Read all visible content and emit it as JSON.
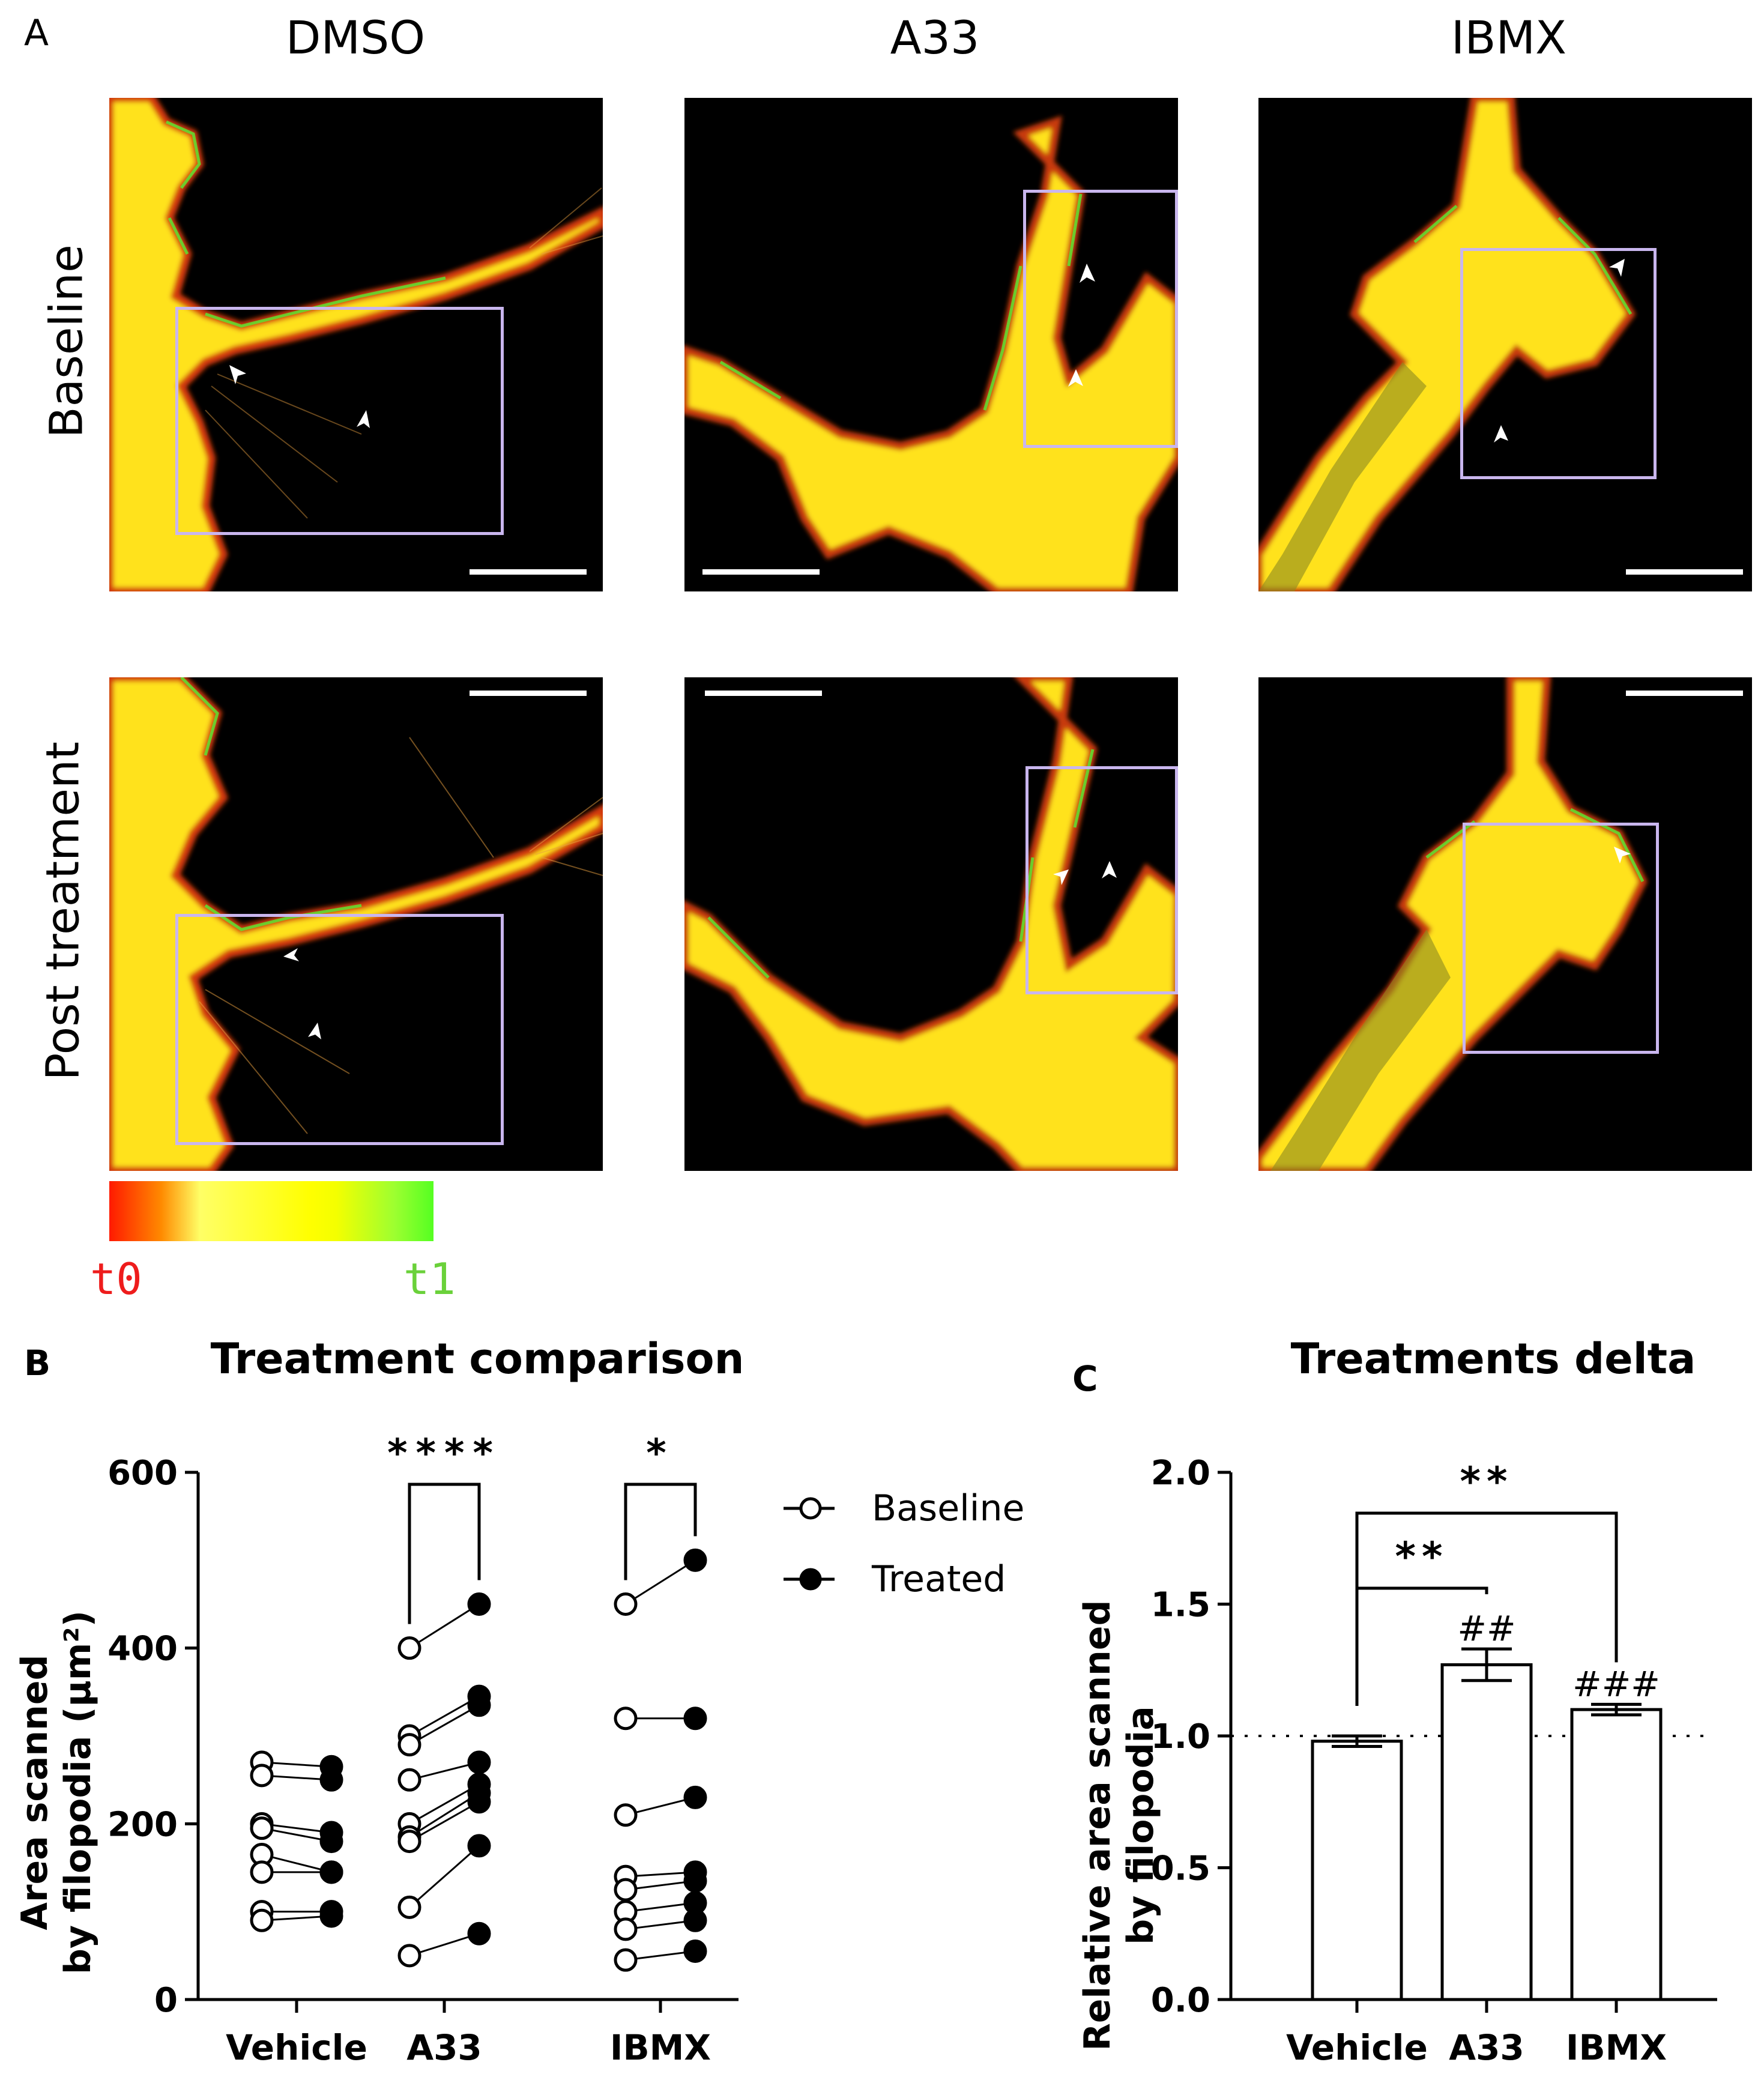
{
  "panel_a": {
    "letter": "A",
    "columns": [
      "DMSO",
      "A33",
      "IBMX"
    ],
    "rows": [
      "Baseline",
      "Post treatment"
    ],
    "colorbar": {
      "start_label": "t0",
      "end_label": "t1",
      "start_color": "#ff1a00",
      "mid_color": "#ffff00",
      "end_color": "#55ff22"
    },
    "roi_color": "#c9b6ee",
    "arrowhead_color": "#ffffff"
  },
  "panel_b": {
    "letter": "B",
    "title": "Treatment comparison",
    "legend": {
      "baseline": "Baseline",
      "treated": "Treated"
    },
    "significance": {
      "A33": "****",
      "IBMX": "*"
    }
  },
  "panel_c": {
    "letter": "C",
    "title": "Treatments delta",
    "brackets": [
      {
        "from": "Vehicle",
        "to": "A33",
        "label": "**"
      },
      {
        "from": "Vehicle",
        "to": "IBMX",
        "label": "**"
      }
    ],
    "bar_marks": {
      "A33": "##",
      "IBMX": "###"
    }
  },
  "chart_data": [
    {
      "type": "scatter",
      "title": "Treatment comparison",
      "ylabel_line1": "Area scanned",
      "ylabel_line2": "by filopodia (µm²)",
      "xlabel": "",
      "categories": [
        "Vehicle",
        "A33",
        "IBMX"
      ],
      "ylim": [
        0,
        600
      ],
      "yticks": [
        0,
        200,
        400,
        600
      ],
      "paired": {
        "Vehicle": {
          "baseline": [
            270,
            255,
            200,
            195,
            165,
            145,
            100,
            90
          ],
          "treated": [
            265,
            250,
            190,
            180,
            145,
            145,
            100,
            95
          ]
        },
        "A33": {
          "baseline": [
            400,
            300,
            290,
            250,
            200,
            185,
            180,
            105,
            50
          ],
          "treated": [
            450,
            345,
            335,
            270,
            245,
            235,
            225,
            175,
            75
          ]
        },
        "IBMX": {
          "baseline": [
            450,
            320,
            210,
            140,
            125,
            100,
            80,
            45
          ],
          "treated": [
            500,
            320,
            230,
            145,
            135,
            110,
            90,
            55
          ]
        }
      },
      "grid": false,
      "legend_position": "right"
    },
    {
      "type": "bar",
      "title": "Treatments delta",
      "ylabel_line1": "Relative area scanned",
      "ylabel_line2": "by filopodia",
      "xlabel": "",
      "categories": [
        "Vehicle",
        "A33",
        "IBMX"
      ],
      "values": [
        0.98,
        1.27,
        1.1
      ],
      "errors": [
        0.02,
        0.06,
        0.02
      ],
      "reference_line": 1.0,
      "ylim": [
        0,
        2.0
      ],
      "yticks": [
        "0.0",
        "0.5",
        "1.0",
        "1.5",
        "2.0"
      ],
      "grid": false
    }
  ]
}
